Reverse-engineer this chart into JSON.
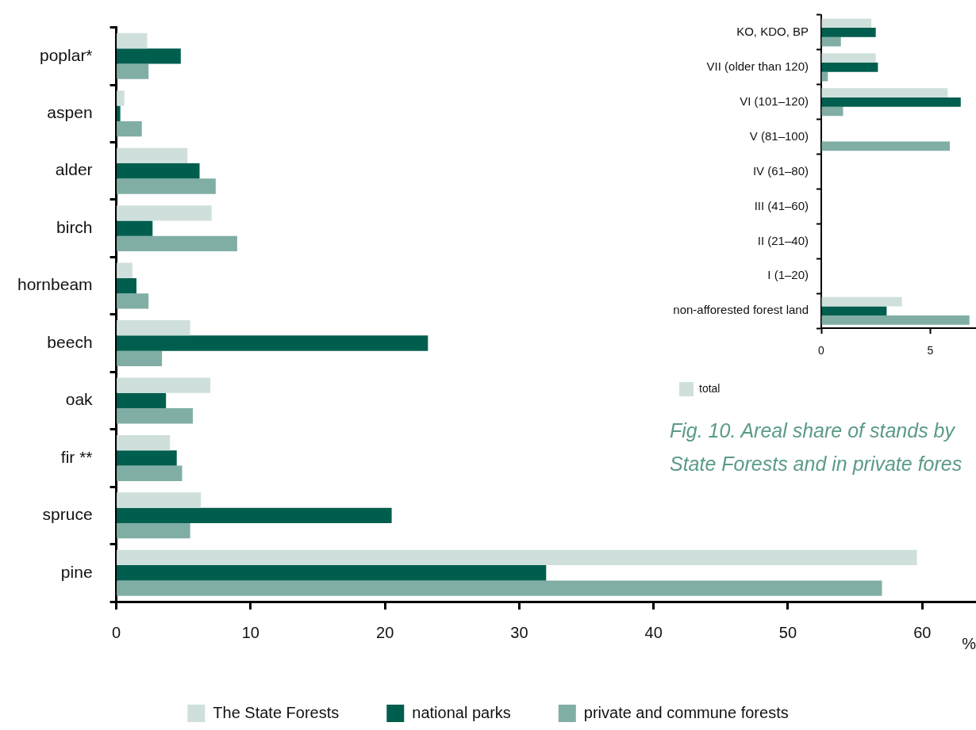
{
  "chart_data": [
    {
      "type": "bar",
      "orientation": "horizontal",
      "categories": [
        "poplar*",
        "aspen",
        "alder",
        "birch",
        "hornbeam",
        "beech",
        "oak",
        "fir **",
        "spruce",
        "pine"
      ],
      "series": [
        {
          "name": "The State Forests",
          "color": "#cfe0dc",
          "values": [
            2.3,
            0.6,
            5.3,
            7.1,
            1.2,
            5.5,
            7.0,
            4.0,
            6.3,
            59.6
          ]
        },
        {
          "name": "national parks",
          "color": "#005e4e",
          "values": [
            4.8,
            0.3,
            6.2,
            2.7,
            1.5,
            23.2,
            3.7,
            4.5,
            20.5,
            32.0
          ]
        },
        {
          "name": "private and commune forests",
          "color": "#80aea4",
          "values": [
            2.4,
            1.9,
            7.4,
            9.0,
            2.4,
            3.4,
            5.7,
            4.9,
            5.5,
            57.0
          ]
        }
      ],
      "xlim": [
        0,
        64
      ],
      "xticks": [
        0,
        10,
        20,
        30,
        40,
        50,
        60
      ],
      "xlabel": "%",
      "legend": "bottom"
    },
    {
      "type": "bar",
      "orientation": "horizontal",
      "categories": [
        "KO, KDO, BP",
        "VII (older than 120)",
        "VI (101–120)",
        "V (81–100)",
        "IV (61–80)",
        "III (41–60)",
        "II (21–40)",
        "I (1–20)",
        "non-afforested forest land"
      ],
      "series": [
        {
          "name": "total",
          "color": "#cfe0dc",
          "values": [
            2.3,
            2.5,
            5.8,
            null,
            null,
            null,
            null,
            null,
            3.7
          ]
        },
        {
          "color": "#005e4e",
          "values": [
            2.5,
            2.6,
            6.4,
            null,
            null,
            null,
            null,
            null,
            3.0
          ]
        },
        {
          "color": "#80aea4",
          "values": [
            0.9,
            0.3,
            1.0,
            5.9,
            null,
            null,
            null,
            null,
            6.8
          ]
        }
      ],
      "xlim": [
        0,
        7.1
      ],
      "xticks": [
        0,
        5
      ],
      "legend": "bottom left",
      "annotations": [
        "Fig. 10. Areal share of stands by",
        "State Forests and in private fores"
      ]
    }
  ]
}
